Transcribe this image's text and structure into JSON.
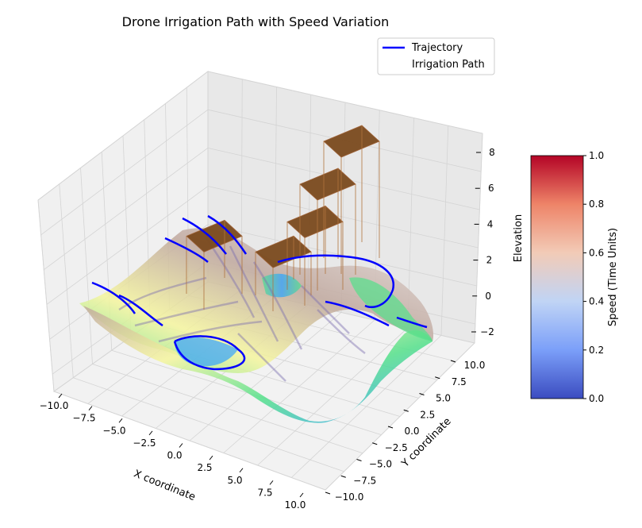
{
  "chart_data": {
    "type": "surface3d",
    "title": "Drone Irrigation Path with Speed Variation",
    "xlabel": "X coordinate",
    "ylabel": "Y coordinate",
    "zlabel": "Elevation",
    "xlim": [
      -10,
      10
    ],
    "ylim": [
      -10,
      10
    ],
    "zlim": [
      -2.5,
      8.5
    ],
    "x_ticks": [
      "−10.0",
      "−7.5",
      "−5.0",
      "−2.5",
      "0.0",
      "2.5",
      "5.0",
      "7.5",
      "10.0"
    ],
    "y_ticks": [
      "−10.0",
      "−7.5",
      "−5.0",
      "−2.5",
      "0.0",
      "2.5",
      "5.0",
      "7.5",
      "10.0"
    ],
    "z_ticks": [
      "−2",
      "0",
      "2",
      "4",
      "6",
      "8"
    ],
    "surface": {
      "function": "elevation(x, y) over the field",
      "colormap": "terrain",
      "colors": [
        "#33a3ff",
        "#54e08a",
        "#f5f59e",
        "#c0a89e",
        "#e8e0de"
      ]
    },
    "legend": {
      "placement": "top-right",
      "entries": [
        {
          "label": "Trajectory",
          "color": "#0000ff",
          "style": "line"
        },
        {
          "label": "Irrigation Path",
          "color": "",
          "style": "none"
        }
      ]
    },
    "trajectory": {
      "name": "Trajectory",
      "color": "#0000ff",
      "description_points": [
        [
          -10,
          -6,
          0.5
        ],
        [
          -6,
          -7,
          -1
        ],
        [
          -2,
          -6,
          -1.5
        ],
        [
          2,
          -4,
          -0.5
        ],
        [
          6,
          0,
          1
        ],
        [
          9,
          3,
          1.5
        ],
        [
          10,
          6,
          0.5
        ]
      ]
    },
    "irrigation_columns": [
      {
        "x": -6.5,
        "y": 2,
        "height": 2.2,
        "color": "#7a4a1e"
      },
      {
        "x": -2.5,
        "y": 1.5,
        "height": 1.6,
        "color": "#7a4a1e"
      },
      {
        "x": 1,
        "y": 5,
        "height": 3.2,
        "color": "#7a4a1e"
      },
      {
        "x": 3,
        "y": 8,
        "height": 4.5,
        "color": "#7a4a1e"
      },
      {
        "x": 6,
        "y": 9.5,
        "height": 6.5,
        "color": "#7a4a1e"
      }
    ],
    "colorbar": {
      "label": "Speed (Time Units)",
      "colormap": "coolwarm",
      "ticks": [
        "0.0",
        "0.2",
        "0.4",
        "0.6",
        "0.8",
        "1.0"
      ],
      "range": [
        0,
        1
      ],
      "colors": [
        "#3b4cc0",
        "#7b9ff9",
        "#c0d4f5",
        "#f2cbb7",
        "#ee8468",
        "#b40426"
      ]
    },
    "grid": true
  }
}
